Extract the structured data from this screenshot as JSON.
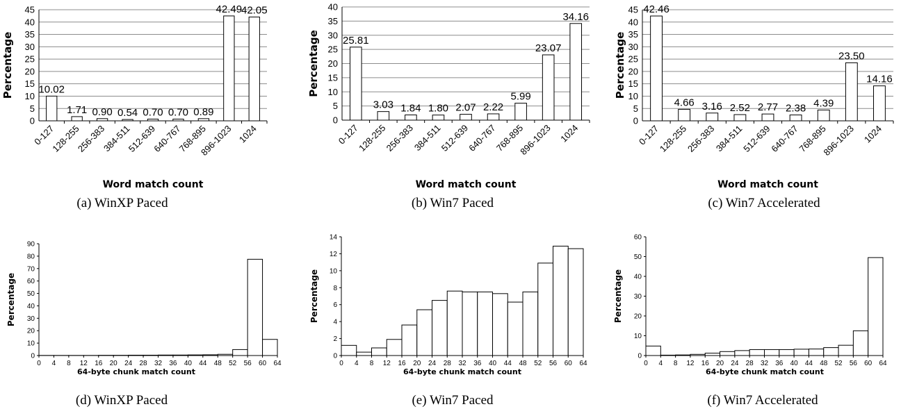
{
  "chart_data": [
    {
      "type": "bar",
      "caption": "(a) WinXP Paced",
      "xlabel": "Word match count",
      "ylabel": "Percentage",
      "ylim": [
        0,
        45
      ],
      "yticks": [
        0,
        5,
        10,
        15,
        20,
        25,
        30,
        35,
        40,
        45
      ],
      "categories": [
        "0-127",
        "128-255",
        "256-383",
        "384-511",
        "512-639",
        "640-767",
        "768-895",
        "896-1023",
        "1024"
      ],
      "values": [
        10.02,
        1.71,
        0.9,
        0.54,
        0.7,
        0.7,
        0.89,
        42.49,
        42.05
      ],
      "labels": [
        "10.02",
        "1.71",
        "0.90",
        "0.54",
        "0.70",
        "0.70",
        "0.89",
        "42.49",
        "42.05"
      ],
      "grid": true
    },
    {
      "type": "bar",
      "caption": "(b) Win7 Paced",
      "xlabel": "Word match count",
      "ylabel": "Percentage",
      "ylim": [
        0,
        40
      ],
      "yticks": [
        0,
        5,
        10,
        15,
        20,
        25,
        30,
        35,
        40
      ],
      "categories": [
        "0-127",
        "128-255",
        "256-383",
        "384-511",
        "512-639",
        "640-767",
        "768-895",
        "896-1023",
        "1024"
      ],
      "values": [
        25.81,
        3.03,
        1.84,
        1.8,
        2.07,
        2.22,
        5.99,
        23.07,
        34.16
      ],
      "labels": [
        "25.81",
        "3.03",
        "1.84",
        "1.80",
        "2.07",
        "2.22",
        "5.99",
        "23.07",
        "34.16"
      ],
      "grid": true
    },
    {
      "type": "bar",
      "caption": "(c) Win7 Accelerated",
      "xlabel": "Word match count",
      "ylabel": "Percentage",
      "ylim": [
        0,
        45
      ],
      "yticks": [
        0,
        5,
        10,
        15,
        20,
        25,
        30,
        35,
        40,
        45
      ],
      "categories": [
        "0-127",
        "128-255",
        "256-383",
        "384-511",
        "512-639",
        "640-767",
        "768-895",
        "896-1023",
        "1024"
      ],
      "values": [
        42.46,
        4.66,
        3.16,
        2.52,
        2.77,
        2.38,
        4.39,
        23.5,
        14.16
      ],
      "labels": [
        "42.46",
        "4.66",
        "3.16",
        "2.52",
        "2.77",
        "2.38",
        "4.39",
        "23.50",
        "14.16"
      ],
      "grid": true
    },
    {
      "type": "histogram",
      "caption": "(d) WinXP Paced",
      "xlabel": "64-byte chunk match count",
      "ylabel": "Percentage",
      "ylim": [
        0,
        90
      ],
      "yticks": [
        0,
        10,
        20,
        30,
        40,
        50,
        60,
        70,
        80,
        90
      ],
      "xticks": [
        0,
        4,
        8,
        12,
        16,
        20,
        24,
        28,
        32,
        36,
        40,
        44,
        48,
        52,
        56,
        60,
        64
      ],
      "values": [
        0.1,
        0.1,
        0.1,
        0.1,
        0.2,
        0.2,
        0.3,
        0.3,
        0.4,
        0.4,
        0.5,
        0.6,
        1.0,
        4.8,
        77.5,
        13.0
      ],
      "grid": false
    },
    {
      "type": "histogram",
      "caption": "(e) Win7 Paced",
      "xlabel": "64-byte chunk match count",
      "ylabel": "Percentage",
      "ylim": [
        0,
        14
      ],
      "yticks": [
        0,
        2,
        4,
        6,
        8,
        10,
        12,
        14
      ],
      "xticks": [
        0,
        4,
        8,
        12,
        16,
        20,
        24,
        28,
        32,
        36,
        40,
        44,
        48,
        52,
        56,
        60,
        64
      ],
      "values": [
        1.2,
        0.4,
        0.9,
        1.9,
        3.6,
        5.4,
        6.5,
        7.6,
        7.5,
        7.5,
        7.3,
        6.3,
        7.5,
        10.9,
        12.9,
        12.6
      ],
      "grid": false
    },
    {
      "type": "histogram",
      "caption": "(f) Win7 Accelerated",
      "xlabel": "64-byte chunk match count",
      "ylabel": "Percentage",
      "ylim": [
        0,
        60
      ],
      "yticks": [
        0,
        10,
        20,
        30,
        40,
        50,
        60
      ],
      "xticks": [
        0,
        4,
        8,
        12,
        16,
        20,
        24,
        28,
        32,
        36,
        40,
        44,
        48,
        52,
        56,
        60,
        64
      ],
      "values": [
        4.8,
        0.2,
        0.3,
        0.6,
        1.2,
        2.0,
        2.5,
        3.0,
        3.0,
        3.0,
        3.2,
        3.3,
        4.0,
        5.2,
        12.5,
        49.5
      ],
      "grid": false
    }
  ]
}
